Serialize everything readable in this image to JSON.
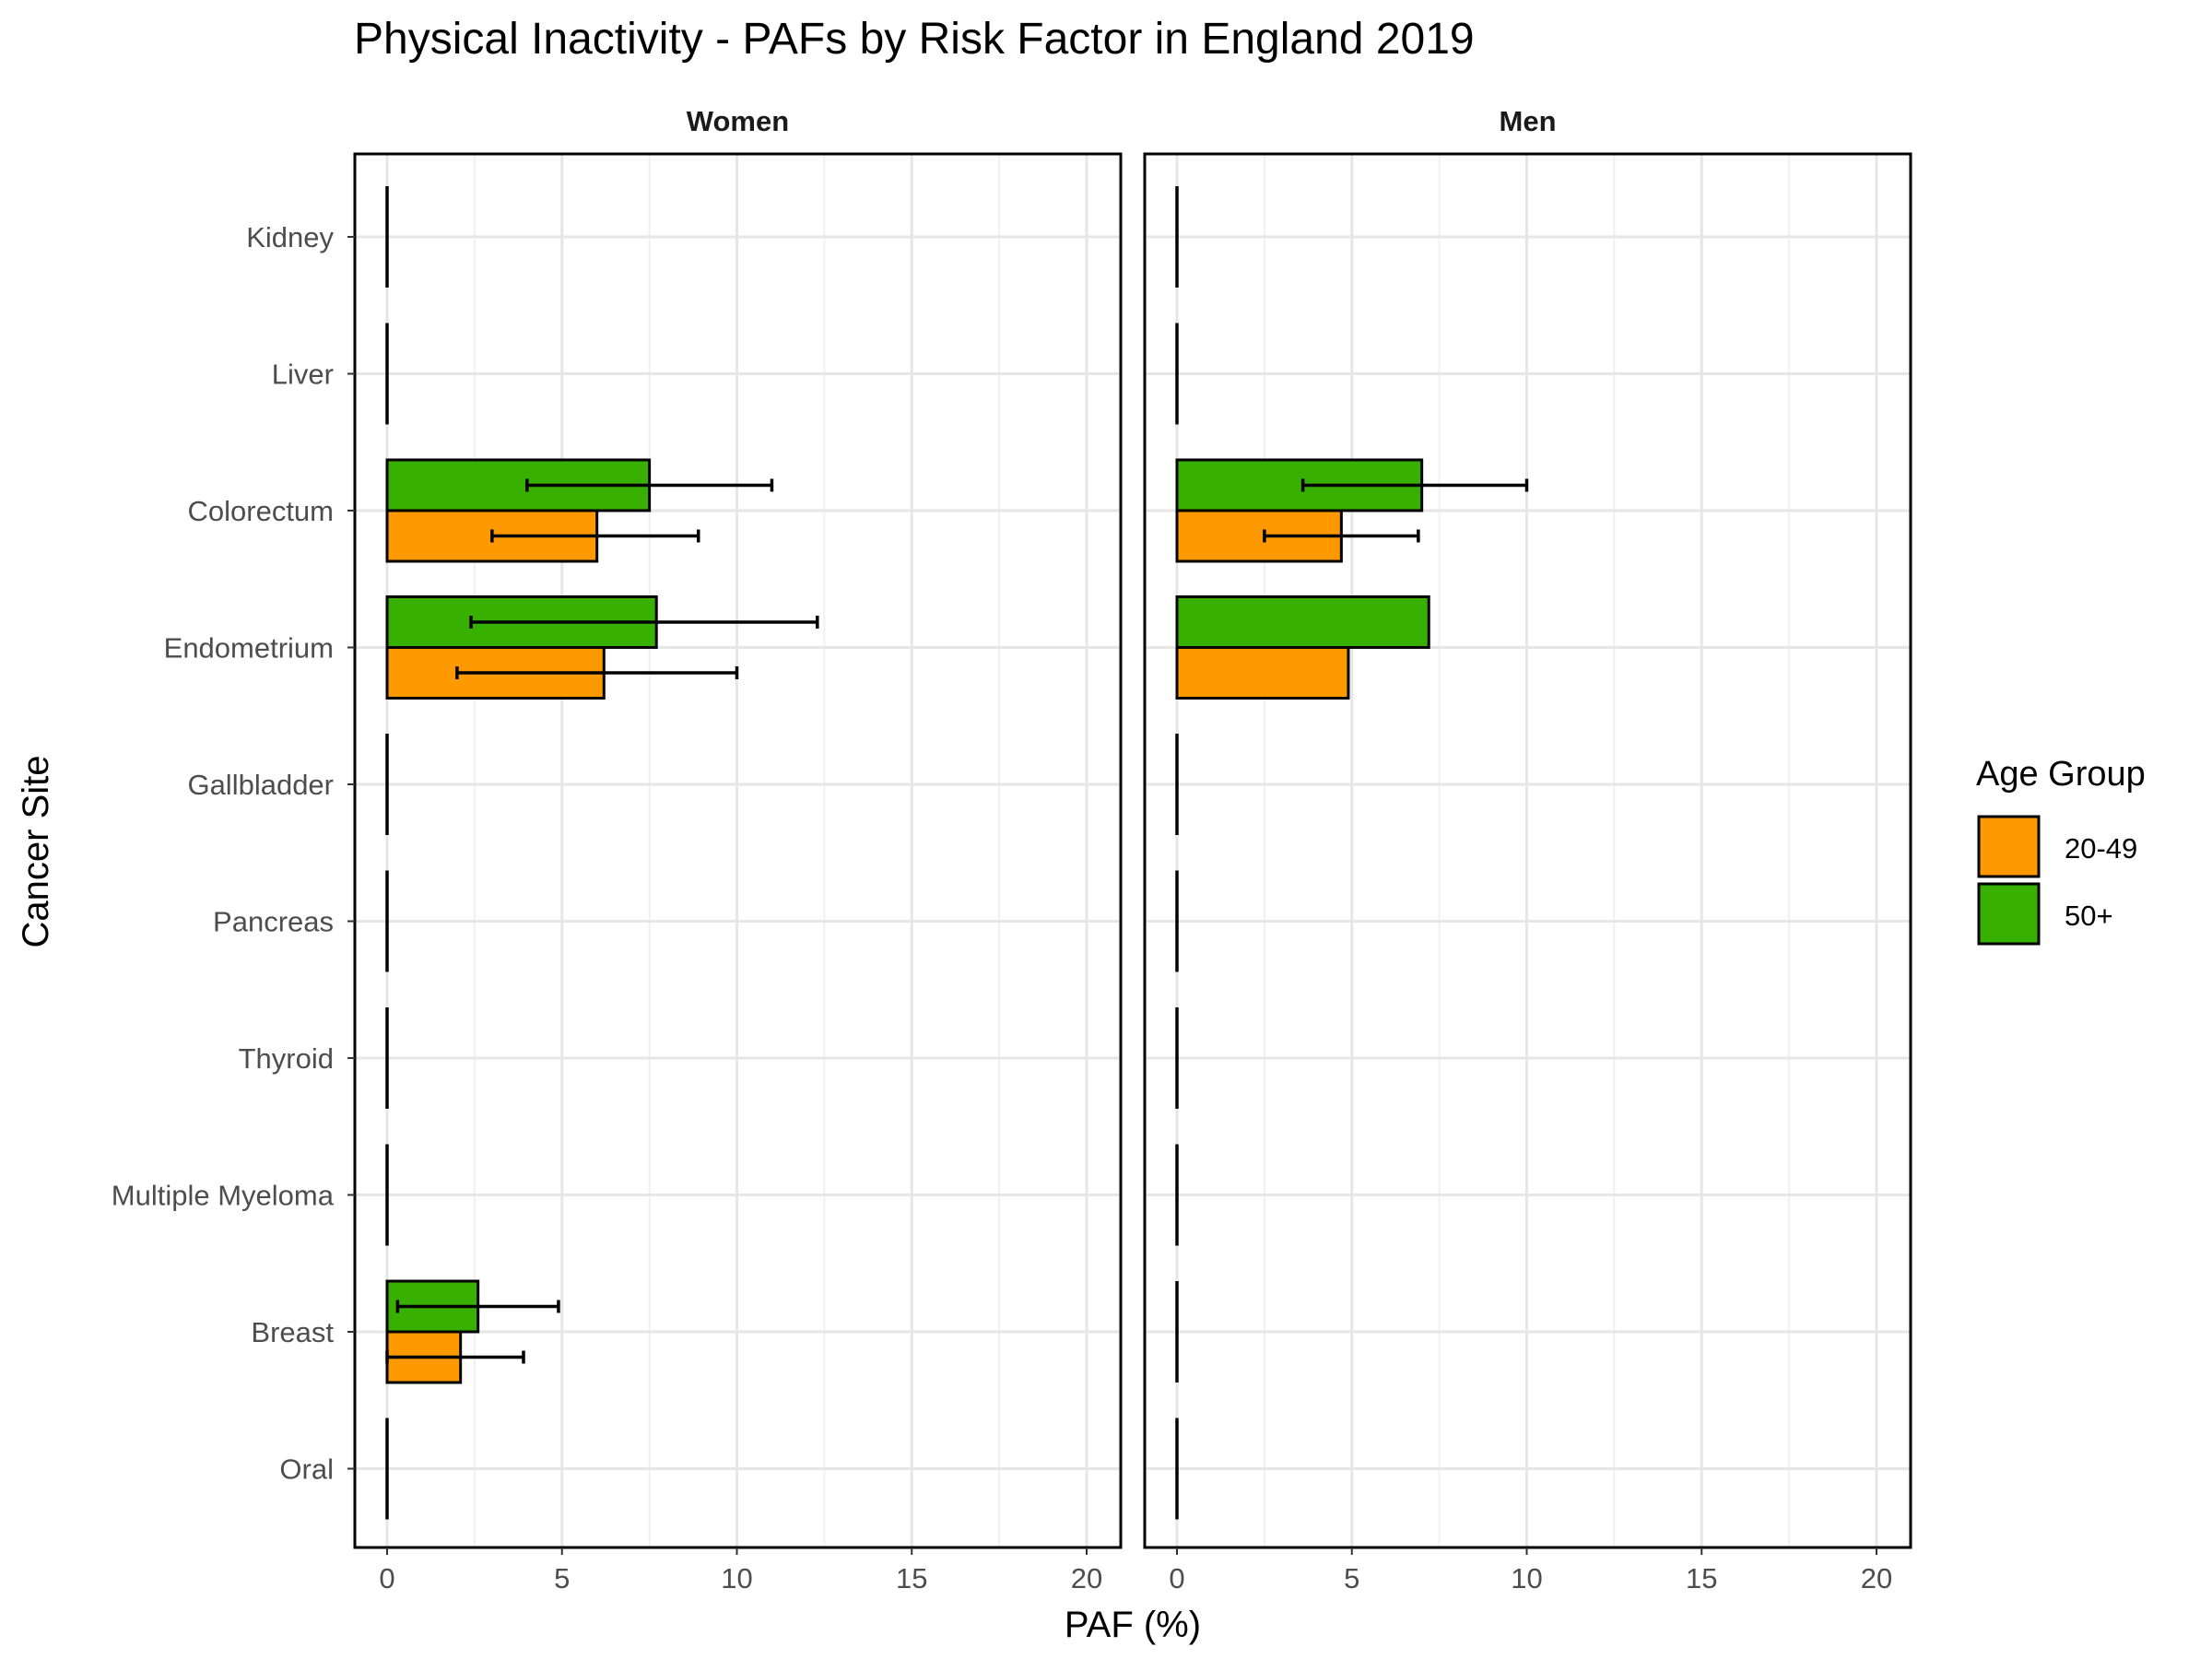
{
  "chart_data": {
    "type": "bar",
    "orientation": "horizontal",
    "title": "Physical Inactivity  - PAFs by Risk Factor in England 2019",
    "xlabel": "PAF (%)",
    "ylabel": "Cancer Site",
    "xlim": [
      0,
      20
    ],
    "xticks": [
      "0",
      "5",
      "10",
      "15",
      "20"
    ],
    "grid": true,
    "legend_position": "right",
    "legend_title": "Age Group",
    "categories": [
      "Kidney",
      "Liver",
      "Colorectum",
      "Endometrium",
      "Gallbladder",
      "Pancreas",
      "Thyroid",
      "Multiple Myeloma",
      "Breast",
      "Oral"
    ],
    "series_meta": [
      {
        "name": "20-49",
        "color": "#FF9900"
      },
      {
        "name": "50+",
        "color": "#38B000"
      }
    ],
    "panels": [
      {
        "name": "Women",
        "series": [
          {
            "name": "20-49",
            "values": [
              0,
              0,
              6.0,
              6.2,
              0,
              0,
              0,
              0,
              2.1,
              0
            ],
            "lower": [
              null,
              null,
              3.0,
              2.0,
              null,
              null,
              null,
              null,
              0.0,
              null
            ],
            "upper": [
              null,
              null,
              8.9,
              10.0,
              null,
              null,
              null,
              null,
              3.9,
              null
            ]
          },
          {
            "name": "50+",
            "values": [
              0,
              0,
              7.5,
              7.7,
              0,
              0,
              0,
              0,
              2.6,
              0
            ],
            "lower": [
              null,
              null,
              4.0,
              2.4,
              null,
              null,
              null,
              null,
              0.3,
              null
            ],
            "upper": [
              null,
              null,
              11.0,
              12.3,
              null,
              null,
              null,
              null,
              4.9,
              null
            ]
          }
        ]
      },
      {
        "name": "Men",
        "series": [
          {
            "name": "20-49",
            "values": [
              0,
              0,
              4.7,
              4.9,
              0,
              0,
              0,
              0,
              0,
              0
            ],
            "lower": [
              null,
              null,
              2.5,
              null,
              null,
              null,
              null,
              null,
              null,
              null
            ],
            "upper": [
              null,
              null,
              6.9,
              null,
              null,
              null,
              null,
              null,
              null,
              null
            ]
          },
          {
            "name": "50+",
            "values": [
              0,
              0,
              7.0,
              7.2,
              0,
              0,
              0,
              0,
              0,
              0
            ],
            "lower": [
              null,
              null,
              3.6,
              null,
              null,
              null,
              null,
              null,
              null,
              null
            ],
            "upper": [
              null,
              null,
              10.0,
              null,
              null,
              null,
              null,
              null,
              null,
              null
            ]
          }
        ]
      }
    ]
  }
}
